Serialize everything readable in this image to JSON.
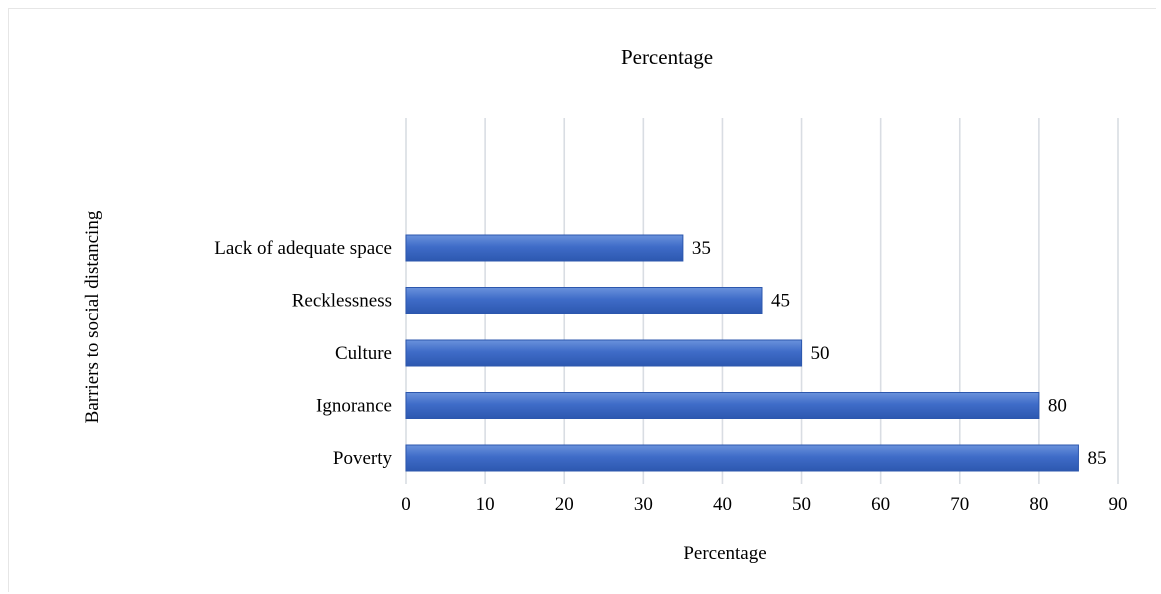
{
  "chart_data": {
    "type": "bar",
    "orientation": "horizontal",
    "title": "Percentage",
    "xlabel": "Percentage",
    "ylabel": "Barriers to social distancing",
    "categories": [
      "Lack of adequate space",
      "Recklessness",
      "Culture",
      "Ignorance",
      "Poverty"
    ],
    "values": [
      35,
      45,
      50,
      80,
      85
    ],
    "data_labels": [
      "35",
      "45",
      "50",
      "80",
      "85"
    ],
    "xlim": [
      0,
      90
    ],
    "xticks": [
      "0",
      "10",
      "20",
      "30",
      "40",
      "50",
      "60",
      "70",
      "80",
      "90"
    ],
    "grid": "vertical",
    "legend": "none",
    "bar_color": "#3a68c4"
  }
}
